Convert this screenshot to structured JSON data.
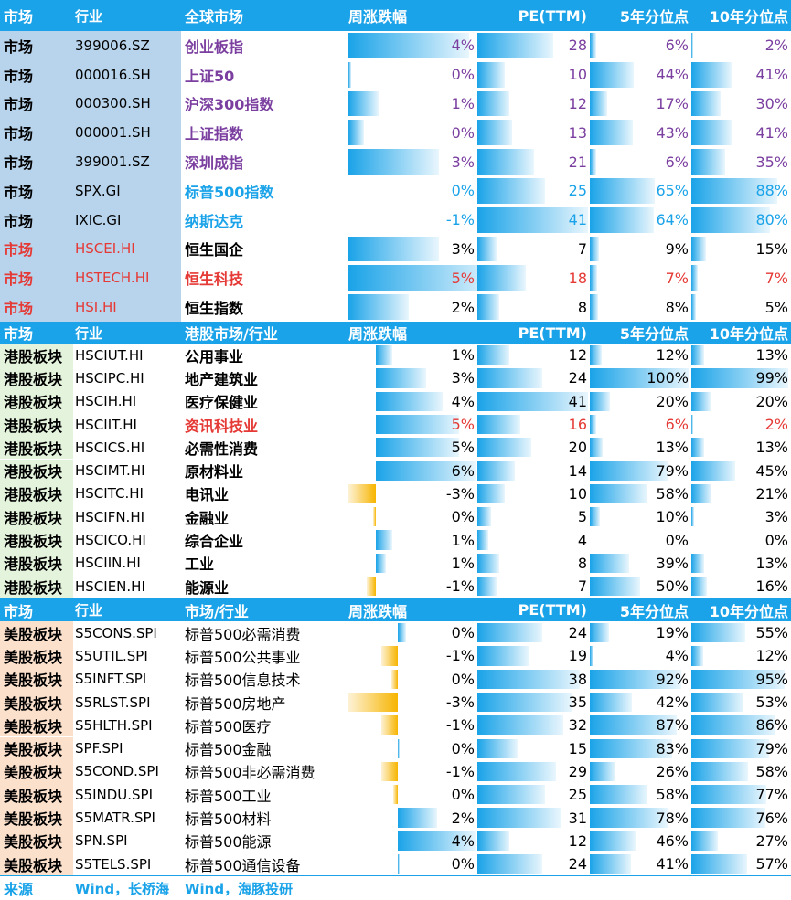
{
  "headers": {
    "global": [
      "市场",
      "行业",
      "全球市场",
      "周涨跌幅",
      "PE(TTM)",
      "5年分位点",
      "10年分位点"
    ],
    "hk": [
      "市场",
      "行业",
      "港股市场/行业",
      "周涨跌幅",
      "PE(TTM)",
      "5年分位点",
      "10年分位点"
    ],
    "us": [
      "市场",
      "行业",
      "市场/行业",
      "周涨跌幅",
      "PE(TTM)",
      "5年分位点",
      "10年分位点"
    ]
  },
  "colors": {
    "header_blue": "#1aa3e8",
    "global_market_bg": "#b8d4ec",
    "hk_market_bg": "#e4f3dc",
    "us_market_bg": "#fbe0cc",
    "red": "#e53935",
    "purple": "#7b3fa0",
    "teal": "#1aa3e8",
    "black": "#000000"
  },
  "global_rows": [
    {
      "market": "市场",
      "code": "399006.SZ",
      "name": "创业板指",
      "weekly": "4%",
      "weekly_val": 4,
      "pe": "28",
      "pe_val": 28,
      "p5": "6%",
      "p5_val": 6,
      "p10": "2%",
      "p10_val": 2,
      "color": "purple"
    },
    {
      "market": "市场",
      "code": "000016.SH",
      "name": "上证50",
      "weekly": "0%",
      "weekly_val": 0.1,
      "pe": "10",
      "pe_val": 10,
      "p5": "44%",
      "p5_val": 44,
      "p10": "41%",
      "p10_val": 41,
      "color": "purple"
    },
    {
      "market": "市场",
      "code": "000300.SH",
      "name": "沪深300指数",
      "weekly": "1%",
      "weekly_val": 1,
      "pe": "12",
      "pe_val": 12,
      "p5": "17%",
      "p5_val": 17,
      "p10": "30%",
      "p10_val": 30,
      "color": "purple"
    },
    {
      "market": "市场",
      "code": "000001.SH",
      "name": "上证指数",
      "weekly": "0%",
      "weekly_val": 0.5,
      "pe": "13",
      "pe_val": 13,
      "p5": "43%",
      "p5_val": 43,
      "p10": "41%",
      "p10_val": 41,
      "color": "purple"
    },
    {
      "market": "市场",
      "code": "399001.SZ",
      "name": "深圳成指",
      "weekly": "3%",
      "weekly_val": 3,
      "pe": "21",
      "pe_val": 21,
      "p5": "6%",
      "p5_val": 6,
      "p10": "35%",
      "p10_val": 35,
      "color": "purple"
    },
    {
      "market": "市场",
      "code": "SPX.GI",
      "name": "标普500指数",
      "weekly": "0%",
      "weekly_val": -0.1,
      "pe": "25",
      "pe_val": 25,
      "p5": "65%",
      "p5_val": 65,
      "p10": "88%",
      "p10_val": 88,
      "color": "teal"
    },
    {
      "market": "市场",
      "code": "IXIC.GI",
      "name": "纳斯达克",
      "weekly": "-1%",
      "weekly_val": -1,
      "pe": "41",
      "pe_val": 41,
      "p5": "64%",
      "p5_val": 64,
      "p10": "80%",
      "p10_val": 80,
      "color": "teal"
    },
    {
      "market": "市场",
      "code": "HSCEI.HI",
      "name": "恒生国企",
      "weekly": "3%",
      "weekly_val": 3,
      "pe": "7",
      "pe_val": 7,
      "p5": "9%",
      "p5_val": 9,
      "p10": "15%",
      "p10_val": 15,
      "color": "black",
      "market_color": "red"
    },
    {
      "market": "市场",
      "code": "HSTECH.HI",
      "name": "恒生科技",
      "weekly": "5%",
      "weekly_val": 5,
      "pe": "18",
      "pe_val": 18,
      "p5": "7%",
      "p5_val": 7,
      "p10": "7%",
      "p10_val": 7,
      "color": "red",
      "market_color": "red"
    },
    {
      "market": "市场",
      "code": "HSI.HI",
      "name": "恒生指数",
      "weekly": "2%",
      "weekly_val": 2,
      "pe": "8",
      "pe_val": 8,
      "p5": "8%",
      "p5_val": 8,
      "p10": "5%",
      "p10_val": 5,
      "color": "black",
      "market_color": "red"
    }
  ],
  "hk_rows": [
    {
      "market": "港股板块",
      "code": "HSCIUT.HI",
      "name": "公用事业",
      "weekly": "1%",
      "weekly_val": 1,
      "pe": "12",
      "pe_val": 12,
      "p5": "12%",
      "p5_val": 12,
      "p10": "13%",
      "p10_val": 13,
      "color": "black"
    },
    {
      "market": "港股板块",
      "code": "HSCIPC.HI",
      "name": "地产建筑业",
      "weekly": "3%",
      "weekly_val": 3,
      "pe": "24",
      "pe_val": 24,
      "p5": "100%",
      "p5_val": 100,
      "p10": "99%",
      "p10_val": 99,
      "color": "black"
    },
    {
      "market": "港股板块",
      "code": "HSCIH.HI",
      "name": "医疗保健业",
      "weekly": "4%",
      "weekly_val": 4,
      "pe": "41",
      "pe_val": 41,
      "p5": "20%",
      "p5_val": 20,
      "p10": "20%",
      "p10_val": 20,
      "color": "black"
    },
    {
      "market": "港股板块",
      "code": "HSCIIT.HI",
      "name": "资讯科技业",
      "weekly": "5%",
      "weekly_val": 5,
      "pe": "16",
      "pe_val": 16,
      "p5": "6%",
      "p5_val": 6,
      "p10": "2%",
      "p10_val": 2,
      "color": "red"
    },
    {
      "market": "港股板块",
      "code": "HSCICS.HI",
      "name": "必需性消费",
      "weekly": "5%",
      "weekly_val": 5,
      "pe": "20",
      "pe_val": 20,
      "p5": "13%",
      "p5_val": 13,
      "p10": "13%",
      "p10_val": 13,
      "color": "black"
    },
    {
      "market": "港股板块",
      "code": "HSCIMT.HI",
      "name": "原材料业",
      "weekly": "6%",
      "weekly_val": 6,
      "pe": "14",
      "pe_val": 14,
      "p5": "79%",
      "p5_val": 79,
      "p10": "45%",
      "p10_val": 45,
      "color": "black"
    },
    {
      "market": "港股板块",
      "code": "HSCITC.HI",
      "name": "电讯业",
      "weekly": "-3%",
      "weekly_val": -3,
      "pe": "10",
      "pe_val": 10,
      "p5": "58%",
      "p5_val": 58,
      "p10": "21%",
      "p10_val": 21,
      "color": "black"
    },
    {
      "market": "港股板块",
      "code": "HSCIFN.HI",
      "name": "金融业",
      "weekly": "0%",
      "weekly_val": -0.3,
      "pe": "5",
      "pe_val": 5,
      "p5": "10%",
      "p5_val": 10,
      "p10": "3%",
      "p10_val": 3,
      "color": "black"
    },
    {
      "market": "港股板块",
      "code": "HSCICO.HI",
      "name": "综合企业",
      "weekly": "1%",
      "weekly_val": 1,
      "pe": "4",
      "pe_val": 4,
      "p5": "0%",
      "p5_val": 0,
      "p10": "0%",
      "p10_val": 0,
      "color": "black"
    },
    {
      "market": "港股板块",
      "code": "HSCIIN.HI",
      "name": "工业",
      "weekly": "1%",
      "weekly_val": 0.6,
      "pe": "8",
      "pe_val": 8,
      "p5": "39%",
      "p5_val": 39,
      "p10": "13%",
      "p10_val": 13,
      "color": "black"
    },
    {
      "market": "港股板块",
      "code": "HSCIEN.HI",
      "name": "能源业",
      "weekly": "-1%",
      "weekly_val": -1,
      "pe": "7",
      "pe_val": 7,
      "p5": "50%",
      "p5_val": 50,
      "p10": "16%",
      "p10_val": 16,
      "color": "black"
    }
  ],
  "us_rows": [
    {
      "market": "美股板块",
      "code": "S5CONS.SPI",
      "name": "标普500必需消费",
      "weekly": "0%",
      "weekly_val": 0.4,
      "pe": "24",
      "pe_val": 24,
      "p5": "19%",
      "p5_val": 19,
      "p10": "55%",
      "p10_val": 55,
      "color": "black"
    },
    {
      "market": "美股板块",
      "code": "S5UTIL.SPI",
      "name": "标普500公共事业",
      "weekly": "-1%",
      "weekly_val": -1,
      "pe": "19",
      "pe_val": 19,
      "p5": "4%",
      "p5_val": 4,
      "p10": "12%",
      "p10_val": 12,
      "color": "black"
    },
    {
      "market": "美股板块",
      "code": "S5INFT.SPI",
      "name": "标普500信息技术",
      "weekly": "0%",
      "weekly_val": -0.4,
      "pe": "38",
      "pe_val": 38,
      "p5": "92%",
      "p5_val": 92,
      "p10": "95%",
      "p10_val": 95,
      "color": "black"
    },
    {
      "market": "美股板块",
      "code": "S5RLST.SPI",
      "name": "标普500房地产",
      "weekly": "-3%",
      "weekly_val": -3,
      "pe": "35",
      "pe_val": 35,
      "p5": "42%",
      "p5_val": 42,
      "p10": "53%",
      "p10_val": 53,
      "color": "black"
    },
    {
      "market": "美股板块",
      "code": "S5HLTH.SPI",
      "name": "标普500医疗",
      "weekly": "-1%",
      "weekly_val": -1,
      "pe": "32",
      "pe_val": 32,
      "p5": "87%",
      "p5_val": 87,
      "p10": "86%",
      "p10_val": 86,
      "color": "black"
    },
    {
      "market": "美股板块",
      "code": "SPF.SPI",
      "name": "标普500金融",
      "weekly": "0%",
      "weekly_val": 0.1,
      "pe": "15",
      "pe_val": 15,
      "p5": "83%",
      "p5_val": 83,
      "p10": "79%",
      "p10_val": 79,
      "color": "black"
    },
    {
      "market": "美股板块",
      "code": "S5COND.SPI",
      "name": "标普500非必需消费",
      "weekly": "-1%",
      "weekly_val": -1,
      "pe": "29",
      "pe_val": 29,
      "p5": "26%",
      "p5_val": 26,
      "p10": "58%",
      "p10_val": 58,
      "color": "black"
    },
    {
      "market": "美股板块",
      "code": "S5INDU.SPI",
      "name": "标普500工业",
      "weekly": "0%",
      "weekly_val": -0.3,
      "pe": "25",
      "pe_val": 25,
      "p5": "58%",
      "p5_val": 58,
      "p10": "77%",
      "p10_val": 77,
      "color": "black"
    },
    {
      "market": "美股板块",
      "code": "S5MATR.SPI",
      "name": "标普500材料",
      "weekly": "2%",
      "weekly_val": 2,
      "pe": "31",
      "pe_val": 31,
      "p5": "78%",
      "p5_val": 78,
      "p10": "76%",
      "p10_val": 76,
      "color": "black"
    },
    {
      "market": "美股板块",
      "code": "SPN.SPI",
      "name": "标普500能源",
      "weekly": "4%",
      "weekly_val": 4,
      "pe": "12",
      "pe_val": 12,
      "p5": "46%",
      "p5_val": 46,
      "p10": "27%",
      "p10_val": 27,
      "color": "black"
    },
    {
      "market": "美股板块",
      "code": "S5TELS.SPI",
      "name": "标普500通信设备",
      "weekly": "0%",
      "weekly_val": 0.1,
      "pe": "24",
      "pe_val": 24,
      "p5": "41%",
      "p5_val": 41,
      "p10": "57%",
      "p10_val": 57,
      "color": "black"
    }
  ],
  "source": {
    "label": "来源",
    "value1": "Wind，长桥海",
    "value2": "Wind，海豚投研"
  }
}
